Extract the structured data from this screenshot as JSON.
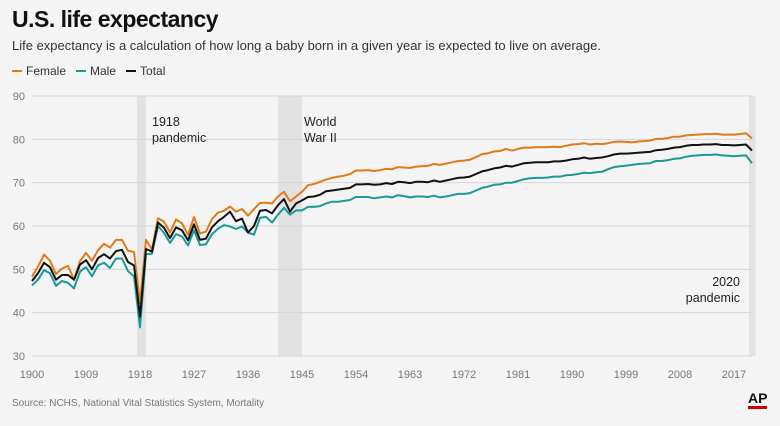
{
  "title": "U.S. life expectancy",
  "subtitle": "Life expectancy is a calculation of how long a baby born in a given year is expected to live on average.",
  "source": "Source: NCHS, National Vital Statistics System, Mortality",
  "logo": "AP",
  "chart_data": {
    "type": "line",
    "title": "U.S. life expectancy",
    "xlim": [
      1900,
      2020
    ],
    "ylim": [
      30,
      90
    ],
    "x_ticks": [
      1900,
      1909,
      1918,
      1927,
      1936,
      1945,
      1954,
      1963,
      1972,
      1981,
      1990,
      1999,
      2008,
      2017
    ],
    "y_ticks": [
      30,
      40,
      50,
      60,
      70,
      80,
      90
    ],
    "grid": true,
    "legend_position": "top-left",
    "x": [
      1900,
      1901,
      1902,
      1903,
      1904,
      1905,
      1906,
      1907,
      1908,
      1909,
      1910,
      1911,
      1912,
      1913,
      1914,
      1915,
      1916,
      1917,
      1918,
      1919,
      1920,
      1921,
      1922,
      1923,
      1924,
      1925,
      1926,
      1927,
      1928,
      1929,
      1930,
      1931,
      1932,
      1933,
      1934,
      1935,
      1936,
      1937,
      1938,
      1939,
      1940,
      1941,
      1942,
      1943,
      1944,
      1945,
      1946,
      1947,
      1948,
      1949,
      1950,
      1951,
      1952,
      1953,
      1954,
      1955,
      1956,
      1957,
      1958,
      1959,
      1960,
      1961,
      1962,
      1963,
      1964,
      1965,
      1966,
      1967,
      1968,
      1969,
      1970,
      1971,
      1972,
      1973,
      1974,
      1975,
      1976,
      1977,
      1978,
      1979,
      1980,
      1981,
      1982,
      1983,
      1984,
      1985,
      1986,
      1987,
      1988,
      1989,
      1990,
      1991,
      1992,
      1993,
      1994,
      1995,
      1996,
      1997,
      1998,
      1999,
      2000,
      2001,
      2002,
      2003,
      2004,
      2005,
      2006,
      2007,
      2008,
      2009,
      2010,
      2011,
      2012,
      2013,
      2014,
      2015,
      2016,
      2017,
      2018,
      2019,
      2020
    ],
    "series": [
      {
        "name": "Female",
        "color": "#e07b1a",
        "values": [
          48.3,
          50.6,
          53.4,
          52.0,
          48.9,
          50.2,
          50.8,
          47.6,
          51.9,
          53.8,
          52.0,
          54.4,
          55.9,
          55.0,
          56.8,
          56.8,
          54.3,
          54.0,
          42.2,
          56.8,
          54.6,
          61.8,
          61.0,
          58.5,
          61.5,
          60.6,
          58.0,
          62.1,
          58.3,
          58.7,
          61.6,
          63.1,
          63.5,
          64.5,
          63.3,
          63.9,
          62.4,
          63.9,
          65.3,
          65.4,
          65.2,
          66.8,
          67.9,
          65.7,
          66.8,
          67.9,
          69.4,
          69.7,
          70.2,
          70.7,
          71.1,
          71.4,
          71.6,
          72.0,
          72.8,
          72.8,
          72.9,
          72.7,
          72.9,
          73.2,
          73.1,
          73.6,
          73.5,
          73.4,
          73.7,
          73.8,
          73.9,
          74.3,
          74.1,
          74.4,
          74.7,
          75.0,
          75.1,
          75.3,
          75.9,
          76.6,
          76.8,
          77.2,
          77.3,
          77.8,
          77.4,
          77.8,
          78.1,
          78.1,
          78.2,
          78.2,
          78.2,
          78.3,
          78.2,
          78.5,
          78.8,
          78.9,
          79.1,
          78.8,
          79.0,
          78.9,
          79.1,
          79.4,
          79.5,
          79.4,
          79.3,
          79.5,
          79.6,
          79.7,
          80.1,
          80.1,
          80.3,
          80.6,
          80.6,
          80.9,
          81.0,
          81.1,
          81.2,
          81.2,
          81.3,
          81.1,
          81.1,
          81.1,
          81.2,
          81.4,
          80.2
        ]
      },
      {
        "name": "Male",
        "color": "#1a9a96",
        "values": [
          46.3,
          47.6,
          49.8,
          49.1,
          46.2,
          47.3,
          46.9,
          45.6,
          49.5,
          50.5,
          48.4,
          50.9,
          51.5,
          50.3,
          52.5,
          52.5,
          49.6,
          48.4,
          36.6,
          53.5,
          53.6,
          60.0,
          58.4,
          56.1,
          58.1,
          57.6,
          55.5,
          59.0,
          55.6,
          55.8,
          58.1,
          59.4,
          60.2,
          59.9,
          59.3,
          59.9,
          58.5,
          58.0,
          61.9,
          62.1,
          60.8,
          62.6,
          64.2,
          62.6,
          63.6,
          63.6,
          64.4,
          64.4,
          64.6,
          65.2,
          65.6,
          65.6,
          65.8,
          66.0,
          66.7,
          66.7,
          66.7,
          66.4,
          66.6,
          66.8,
          66.6,
          67.1,
          66.9,
          66.6,
          66.8,
          66.8,
          66.7,
          67.0,
          66.6,
          66.8,
          67.1,
          67.4,
          67.4,
          67.6,
          68.2,
          68.8,
          69.1,
          69.5,
          69.6,
          70.0,
          70.0,
          70.4,
          70.8,
          71.0,
          71.1,
          71.1,
          71.2,
          71.4,
          71.4,
          71.7,
          71.8,
          72.0,
          72.3,
          72.2,
          72.4,
          72.5,
          73.1,
          73.6,
          73.8,
          73.9,
          74.1,
          74.3,
          74.4,
          74.5,
          75.0,
          75.0,
          75.2,
          75.5,
          75.6,
          76.0,
          76.2,
          76.3,
          76.4,
          76.4,
          76.5,
          76.3,
          76.2,
          76.1,
          76.2,
          76.3,
          74.5
        ]
      },
      {
        "name": "Total",
        "color": "#111111",
        "values": [
          47.3,
          49.1,
          51.5,
          50.5,
          47.6,
          48.7,
          48.7,
          47.6,
          51.1,
          52.1,
          50.0,
          52.6,
          53.5,
          52.5,
          54.2,
          54.5,
          51.7,
          50.9,
          39.1,
          54.7,
          54.1,
          60.8,
          59.6,
          57.2,
          59.7,
          59.0,
          56.7,
          60.4,
          56.8,
          57.1,
          59.7,
          61.1,
          62.1,
          63.3,
          61.1,
          61.7,
          58.5,
          60.0,
          63.5,
          63.7,
          62.9,
          64.8,
          66.2,
          63.3,
          65.2,
          65.9,
          66.7,
          66.8,
          67.2,
          68.0,
          68.2,
          68.4,
          68.6,
          68.8,
          69.6,
          69.6,
          69.7,
          69.5,
          69.6,
          69.9,
          69.7,
          70.2,
          70.1,
          69.9,
          70.2,
          70.2,
          70.1,
          70.5,
          70.2,
          70.5,
          70.8,
          71.1,
          71.2,
          71.4,
          72.0,
          72.6,
          72.9,
          73.3,
          73.5,
          73.9,
          73.7,
          74.1,
          74.5,
          74.6,
          74.7,
          74.7,
          74.7,
          74.9,
          74.9,
          75.1,
          75.4,
          75.5,
          75.8,
          75.5,
          75.7,
          75.8,
          76.1,
          76.5,
          76.7,
          76.7,
          76.8,
          76.9,
          77.0,
          77.1,
          77.5,
          77.6,
          77.8,
          78.1,
          78.2,
          78.5,
          78.7,
          78.7,
          78.8,
          78.8,
          78.9,
          78.7,
          78.7,
          78.6,
          78.7,
          78.8,
          77.4
        ]
      }
    ],
    "shaded_ranges": [
      {
        "from": 1917.5,
        "to": 1919,
        "label_lines": [
          "1918",
          "pandemic"
        ]
      },
      {
        "from": 1941,
        "to": 1945,
        "label_lines": [
          "World",
          "War II"
        ]
      },
      {
        "from": 2019.5,
        "to": 2020.6,
        "label_lines": [
          "2020",
          "pandemic"
        ]
      }
    ]
  }
}
